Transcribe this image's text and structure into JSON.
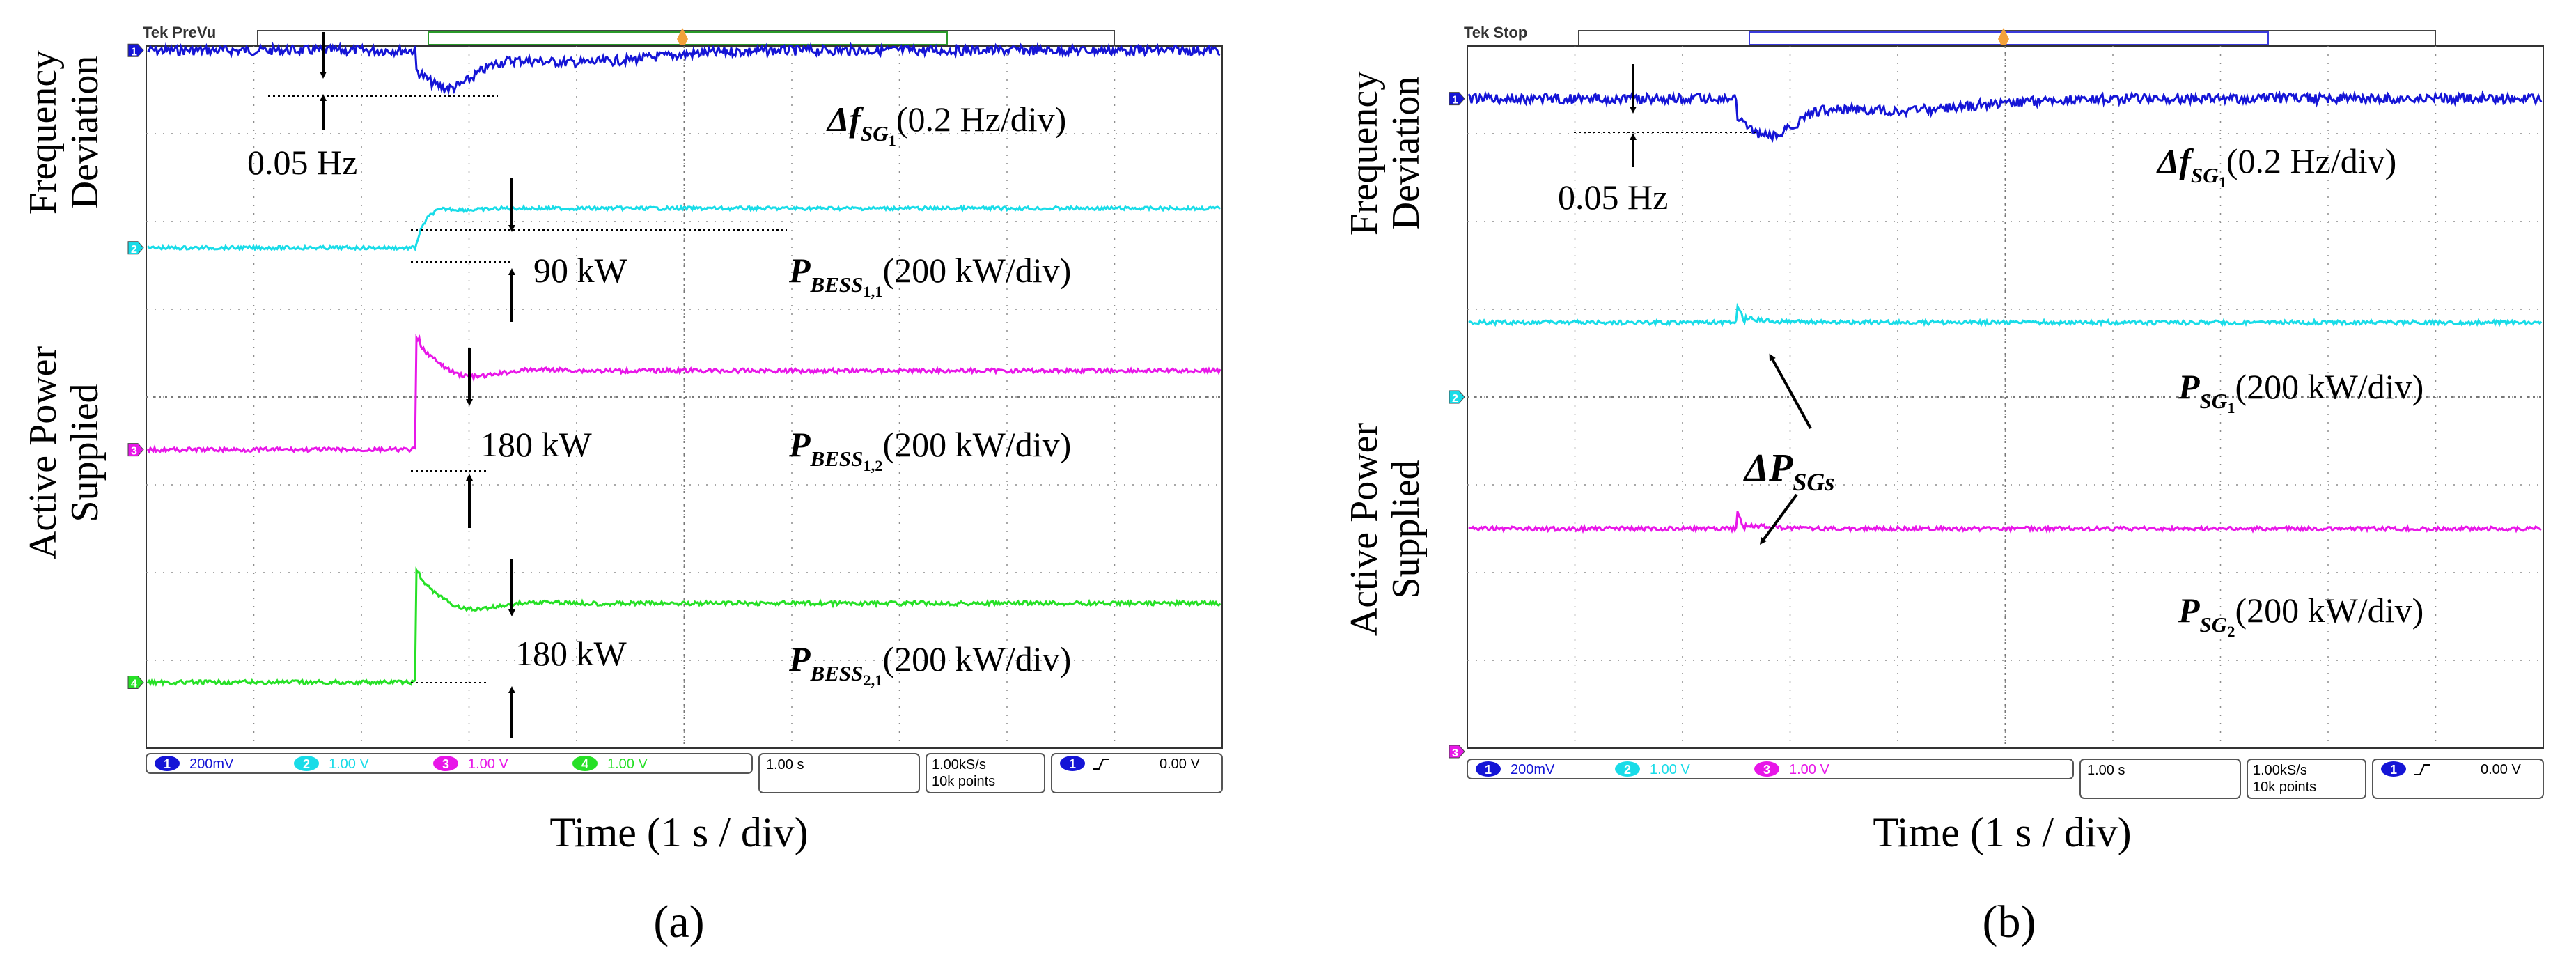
{
  "colors": {
    "ch1": "#1515d6",
    "ch2": "#19dce8",
    "ch3": "#e817e8",
    "ch4": "#26e026",
    "grid": "#8c8c8c",
    "arrow": "#000000"
  },
  "chart_data": [
    {
      "type": "line",
      "panel_label": "(a)",
      "scope_status": "Tek PreVu",
      "ylabel_top": [
        "Frequency",
        "Deviation"
      ],
      "ylabel_bottom": [
        "Active Power",
        "Supplied"
      ],
      "xlabel": "Time (1 s / div)",
      "time_per_div_s": 1,
      "xlim_div": [
        0,
        10
      ],
      "ylim_div": [
        0,
        8
      ],
      "event_time_div": 2.5,
      "series": [
        {
          "name": "Δf_SG1",
          "channel": 1,
          "trace_label": {
            "sym": "Δf",
            "sub": "SG",
            "subsub": "1",
            "scale": "(0.2 Hz/div)"
          },
          "baseline_div": 7.95,
          "step_div": -0.25,
          "step_text": "0.05 Hz",
          "type": "dip-recover"
        },
        {
          "name": "P_BESS1,1",
          "channel": 2,
          "trace_label": {
            "sym": "P",
            "sub": "BESS",
            "subsub": "1,1",
            "scale": "(200 kW/div)"
          },
          "baseline_div": 5.7,
          "step_div": 0.45,
          "step_text": "90 kW",
          "type": "step"
        },
        {
          "name": "P_BESS1,2",
          "channel": 3,
          "trace_label": {
            "sym": "P",
            "sub": "BESS",
            "subsub": "1,2",
            "scale": "(200 kW/div)"
          },
          "baseline_div": 3.4,
          "step_div": 0.9,
          "step_text": "180 kW",
          "type": "step-overshoot"
        },
        {
          "name": "P_BESS2,1",
          "channel": 4,
          "trace_label": {
            "sym": "P",
            "sub": "BESS",
            "subsub": "2,1",
            "scale": "(200 kW/div)"
          },
          "baseline_div": 0.75,
          "step_div": 0.9,
          "step_text": "180 kW",
          "type": "step-overshoot"
        }
      ],
      "readout": {
        "channels": [
          {
            "num": "1",
            "value": "200mV"
          },
          {
            "num": "2",
            "value": "1.00 V"
          },
          {
            "num": "3",
            "value": "1.00 V"
          },
          {
            "num": "4",
            "value": "1.00 V"
          }
        ],
        "timebase": "1.00 s",
        "rate": "1.00kS/s",
        "points": "10k points",
        "trig_ch": "1",
        "trig_level": "0.00 V"
      }
    },
    {
      "type": "line",
      "panel_label": "(b)",
      "scope_status": "Tek Stop",
      "ylabel_top": [
        "Frequency",
        "Deviation"
      ],
      "ylabel_bottom": [
        "Active Power",
        "Supplied"
      ],
      "xlabel": "Time (1 s / div)",
      "time_per_div_s": 1,
      "xlim_div": [
        0,
        10
      ],
      "ylim_div": [
        0,
        8
      ],
      "event_time_div": 2.5,
      "annotation": {
        "sym": "ΔP",
        "sub": "SGs"
      },
      "series": [
        {
          "name": "Δf_SG1",
          "channel": 1,
          "trace_label": {
            "sym": "Δf",
            "sub": "SG",
            "subsub": "1",
            "scale": "(0.2 Hz/div)"
          },
          "baseline_div": 7.4,
          "step_div": -0.25,
          "step_text": "0.05 Hz",
          "type": "dip-recover"
        },
        {
          "name": "P_SG1",
          "channel": 2,
          "trace_label": {
            "sym": "P",
            "sub": "SG",
            "subsub": "1",
            "scale": "(200 kW/div)"
          },
          "baseline_div": 4.85,
          "step_div": 0,
          "type": "flat-spike"
        },
        {
          "name": "P_SG2",
          "channel": 3,
          "trace_label": {
            "sym": "P",
            "sub": "SG",
            "subsub": "2",
            "scale": "(200 kW/div)"
          },
          "baseline_div": 2.5,
          "step_div": 0,
          "type": "flat-spike"
        }
      ],
      "readout": {
        "channels": [
          {
            "num": "1",
            "value": "200mV"
          },
          {
            "num": "2",
            "value": "1.00 V"
          },
          {
            "num": "3",
            "value": "1.00 V"
          }
        ],
        "timebase": "1.00 s",
        "rate": "1.00kS/s",
        "points": "10k points",
        "trig_ch": "1",
        "trig_level": "0.00 V"
      }
    }
  ]
}
